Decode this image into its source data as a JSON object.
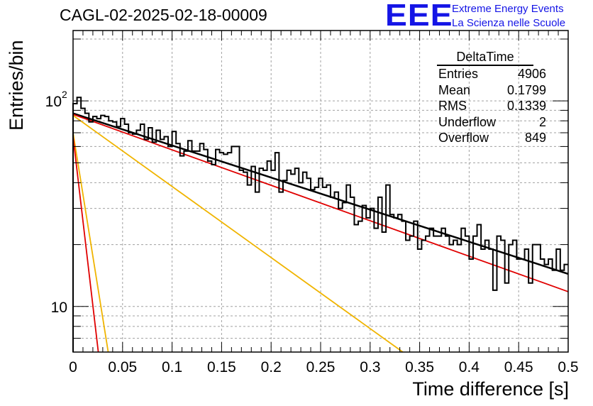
{
  "title": "CAGL-02-2025-02-18-00009",
  "logo": {
    "text": "EEE",
    "line1": "Extreme Energy Events",
    "line2": "La Scienza nelle Scuole",
    "color": "#1515e6"
  },
  "stats": {
    "name": "DeltaTime",
    "rows": [
      {
        "label": "Entries",
        "value": "4906"
      },
      {
        "label": "Mean",
        "value": "0.1799"
      },
      {
        "label": "RMS",
        "value": "0.1339"
      },
      {
        "label": "Underflow",
        "value": "2"
      },
      {
        "label": "Overflow",
        "value": "849"
      }
    ]
  },
  "chart_data": {
    "type": "line",
    "title": "CAGL-02-2025-02-18-00009",
    "xlabel": "Time difference [s]",
    "ylabel": "Entries/bin",
    "xlim": [
      0,
      0.5
    ],
    "ylim": [
      6,
      220
    ],
    "ylog": true,
    "grid": true,
    "x_ticks": [
      "0",
      "0.05",
      "0.1",
      "0.15",
      "0.2",
      "0.25",
      "0.3",
      "0.35",
      "0.4",
      "0.45",
      "0.5"
    ],
    "y_ticks": [
      "10",
      "10^2"
    ],
    "histogram": {
      "name": "DeltaTime",
      "bin_width": 0.004,
      "color": "#000000",
      "values": [
        97,
        104,
        92,
        87,
        79,
        84,
        82,
        85,
        84,
        80,
        79,
        75,
        82,
        77,
        70,
        69,
        72,
        77,
        65,
        74,
        63,
        72,
        65,
        67,
        60,
        71,
        62,
        54,
        57,
        64,
        57,
        57,
        62,
        58,
        51,
        49,
        58,
        56,
        55,
        56,
        60,
        60,
        46,
        45,
        39,
        48,
        36,
        47,
        46,
        51,
        46,
        56,
        36,
        41,
        46,
        44,
        47,
        40,
        45,
        42,
        37,
        38,
        42,
        38,
        39,
        34,
        36,
        30,
        32,
        39,
        34,
        25,
        26,
        31,
        27,
        30,
        24,
        34,
        23,
        39,
        28,
        27,
        28,
        26,
        21,
        22,
        26,
        19,
        21,
        22,
        24,
        22,
        22,
        24,
        22,
        20,
        21,
        20,
        24,
        22,
        17,
        22,
        25,
        19,
        21,
        19,
        12,
        22,
        21,
        13,
        20,
        21,
        17,
        17,
        19,
        13,
        20,
        20,
        17,
        16,
        17,
        15,
        19,
        15,
        16
      ]
    },
    "series": [
      {
        "color": "#000000",
        "values": [
          [
            0.0,
            87
          ],
          [
            0.5,
            14.4
          ]
        ]
      },
      {
        "color": "#e00000",
        "values": [
          [
            0.0,
            86
          ],
          [
            0.5,
            11.8
          ]
        ]
      },
      {
        "color": "#f0b400",
        "values": [
          [
            0.0,
            85
          ],
          [
            0.333,
            6.0
          ]
        ]
      },
      {
        "color": "#f0b400",
        "values": [
          [
            0.0,
            70
          ],
          [
            0.0355,
            6.0
          ]
        ]
      },
      {
        "color": "#e00000",
        "values": [
          [
            0.0,
            67
          ],
          [
            0.0255,
            6.0
          ]
        ]
      }
    ]
  }
}
